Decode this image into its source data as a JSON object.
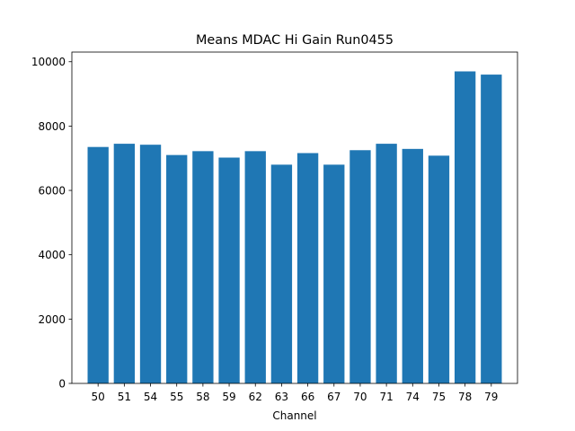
{
  "chart_data": {
    "type": "bar",
    "title": "Means MDAC Hi Gain Run0455",
    "xlabel": "Channel",
    "ylabel": "",
    "categories": [
      "50",
      "51",
      "54",
      "55",
      "58",
      "59",
      "62",
      "63",
      "66",
      "67",
      "70",
      "71",
      "74",
      "75",
      "78",
      "79"
    ],
    "values": [
      7350,
      7450,
      7420,
      7100,
      7220,
      7020,
      7220,
      6800,
      7160,
      6800,
      7250,
      7450,
      7290,
      7080,
      9700,
      9600
    ],
    "ylim": [
      0,
      10300
    ],
    "yticks": [
      0,
      2000,
      4000,
      6000,
      8000,
      10000
    ],
    "ytick_labels": [
      "0",
      "2000",
      "4000",
      "6000",
      "8000",
      "10000"
    ],
    "bar_color": "#1f77b4",
    "grid": false,
    "legend": false
  }
}
